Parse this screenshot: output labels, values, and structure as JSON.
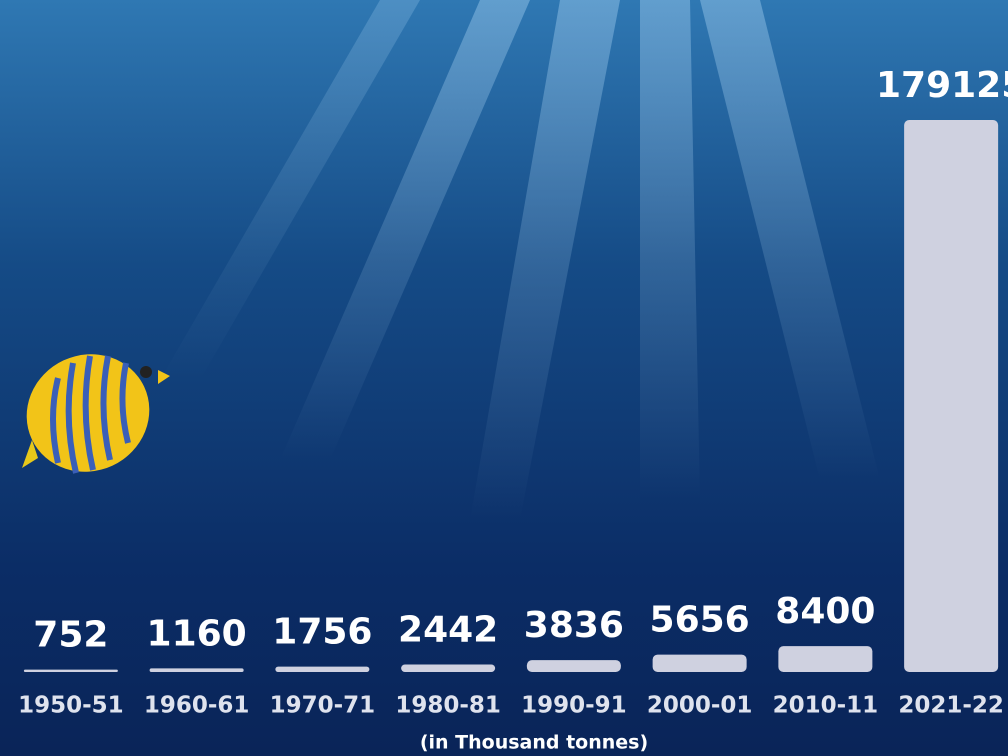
{
  "chart_data": {
    "type": "bar",
    "categories": [
      "1950-51",
      "1960-61",
      "1970-71",
      "1980-81",
      "1990-91",
      "2000-01",
      "2010-11",
      "2021-22"
    ],
    "values": [
      752,
      1160,
      1756,
      2442,
      3836,
      5656,
      8400,
      179125
    ],
    "color": "#cfd1e0",
    "note": "(in Thousand tonnes)"
  }
}
